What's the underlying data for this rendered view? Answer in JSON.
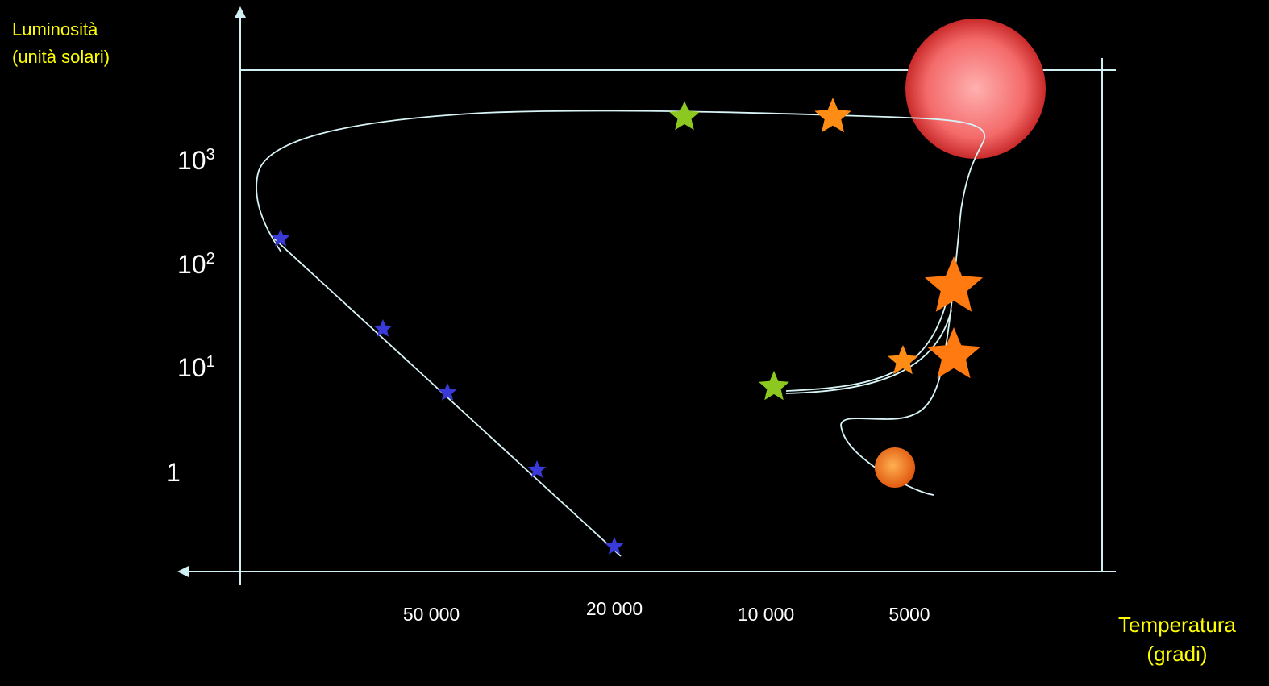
{
  "axes": {
    "y_label": [
      "Luminosità",
      "(unità solari)"
    ],
    "x_label": [
      "Temperatura",
      "(gradi)"
    ],
    "y_ticks": [
      {
        "base": "10",
        "exp": "3"
      },
      {
        "base": "10",
        "exp": "2"
      },
      {
        "base": "10",
        "exp": "1"
      },
      {
        "base": "1",
        "exp": ""
      }
    ],
    "x_ticks": [
      "50 000",
      "20 000",
      "10 000",
      "5000"
    ]
  }
}
